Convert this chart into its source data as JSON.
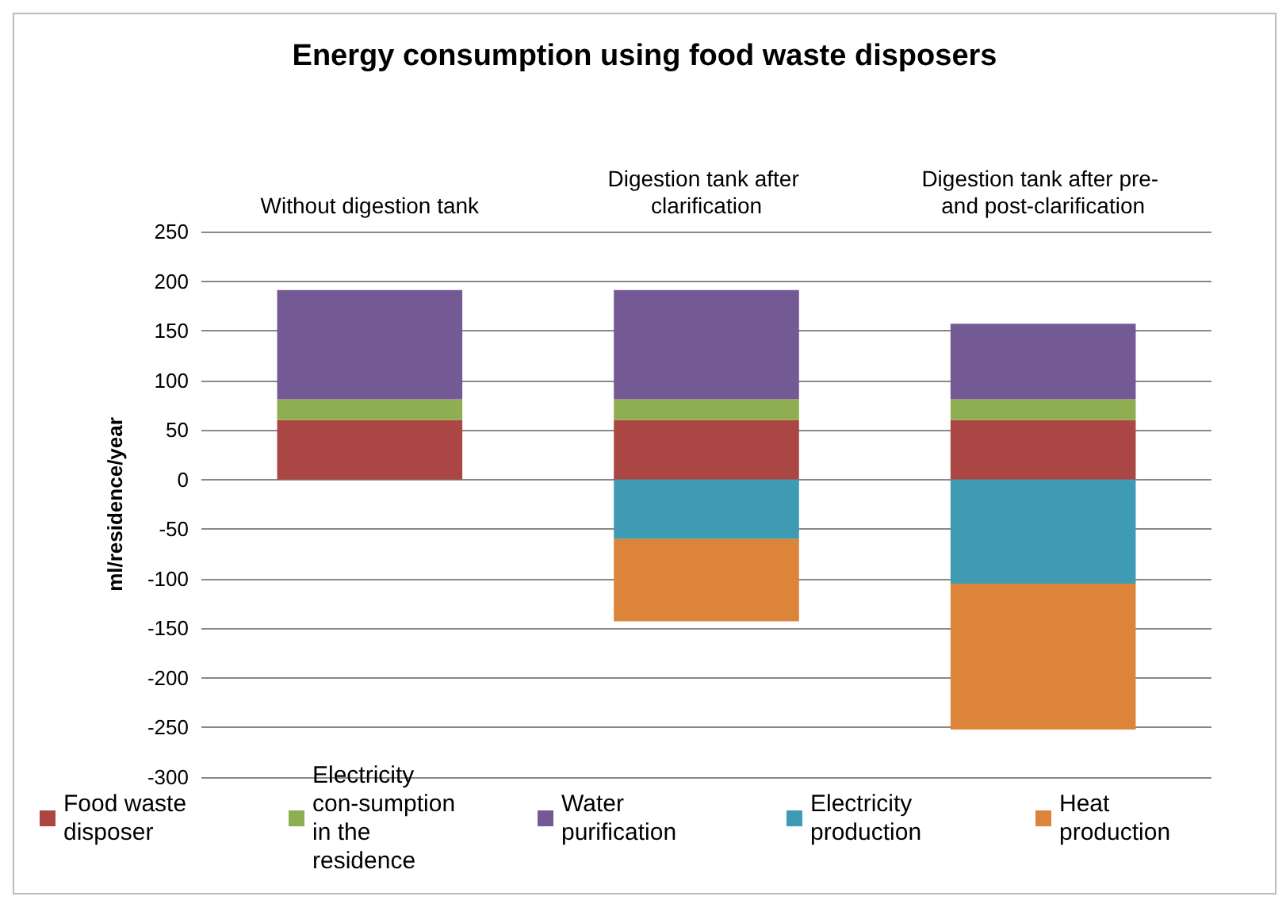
{
  "chart_data": {
    "type": "bar",
    "title": "Energy consumption using food waste disposers",
    "ylabel": "ml/residence/year",
    "categories": [
      "Without digestion tank",
      "Digestion tank after clarification",
      "Digestion tank after pre- and post-clarification"
    ],
    "stacked": true,
    "series": [
      {
        "name": "Food waste disposer",
        "color": "#aa4643",
        "values": [
          60,
          60,
          60
        ]
      },
      {
        "name": "Electricity con-sumption in the residence",
        "color": "#8fae52",
        "values": [
          21,
          21,
          21
        ]
      },
      {
        "name": "Water purification",
        "color": "#735a94",
        "values": [
          110,
          110,
          76
        ]
      },
      {
        "name": "Electricity production",
        "color": "#3f9bb3",
        "values": [
          null,
          -60,
          -105
        ]
      },
      {
        "name": "Heat production",
        "color": "#dd843b",
        "values": [
          null,
          -83,
          -147
        ]
      }
    ],
    "ylim": [
      -300,
      250
    ],
    "yticks": [
      -300,
      -250,
      -200,
      -150,
      -100,
      -50,
      0,
      50,
      100,
      150,
      200,
      250
    ],
    "grid": "y",
    "legend": "bottom"
  }
}
